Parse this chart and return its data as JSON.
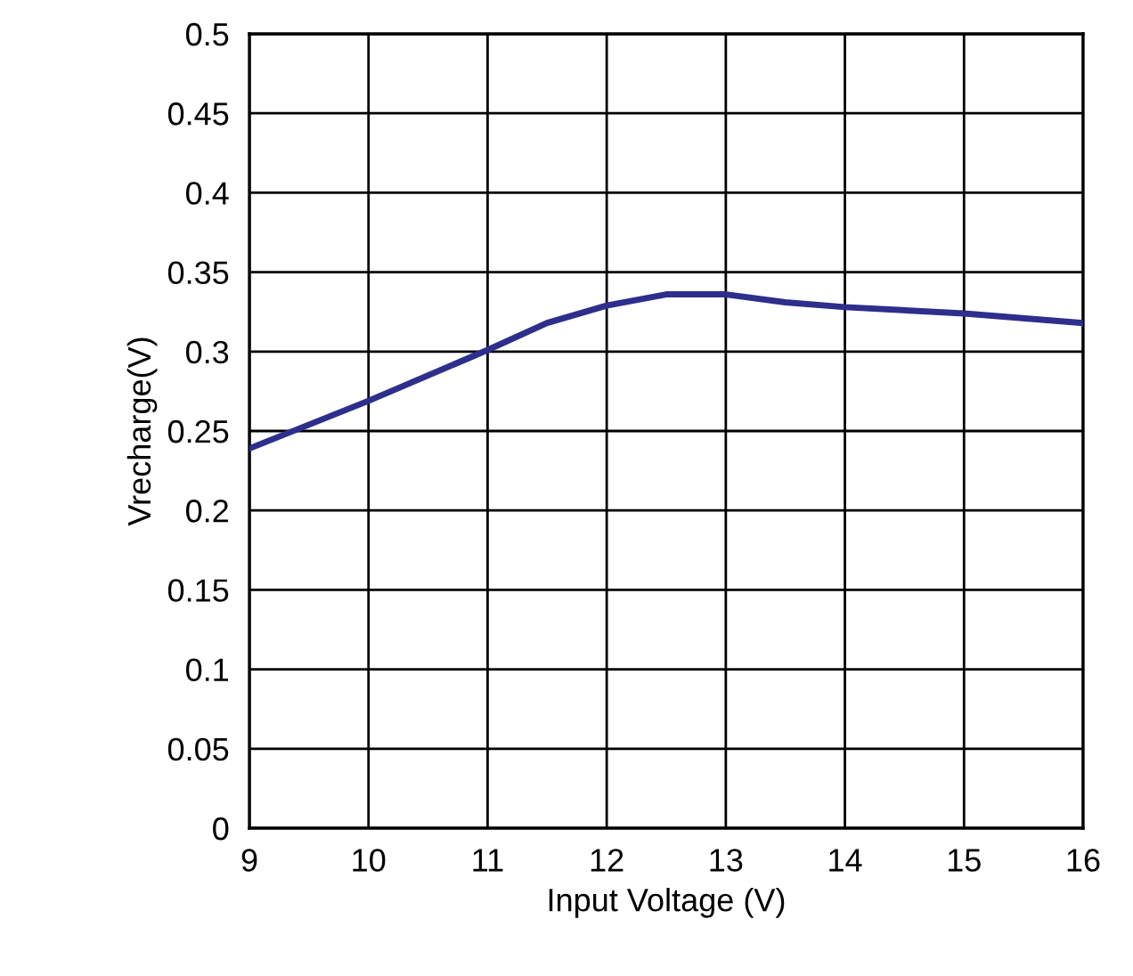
{
  "chart_data": {
    "type": "line",
    "xlabel": "Input Voltage (V)",
    "ylabel": "Vrecharge(V)",
    "xlim": [
      9,
      16
    ],
    "xticks": [
      9,
      10,
      11,
      12,
      13,
      14,
      15,
      16
    ],
    "ylim": [
      0,
      0.5
    ],
    "yticks": [
      0,
      0.05,
      0.1,
      0.15,
      0.2,
      0.25,
      0.3,
      0.35,
      0.4,
      0.45,
      0.5
    ],
    "grid": true,
    "marker": "none",
    "line_style": "solid",
    "series": [
      {
        "color": "#2e2e8c",
        "x": [
          9,
          10,
          11,
          11.5,
          12,
          12.5,
          13,
          13.5,
          14,
          15,
          16
        ],
        "values": [
          0.239,
          0.269,
          0.301,
          0.318,
          0.329,
          0.336,
          0.336,
          0.331,
          0.328,
          0.324,
          0.318
        ]
      }
    ]
  }
}
